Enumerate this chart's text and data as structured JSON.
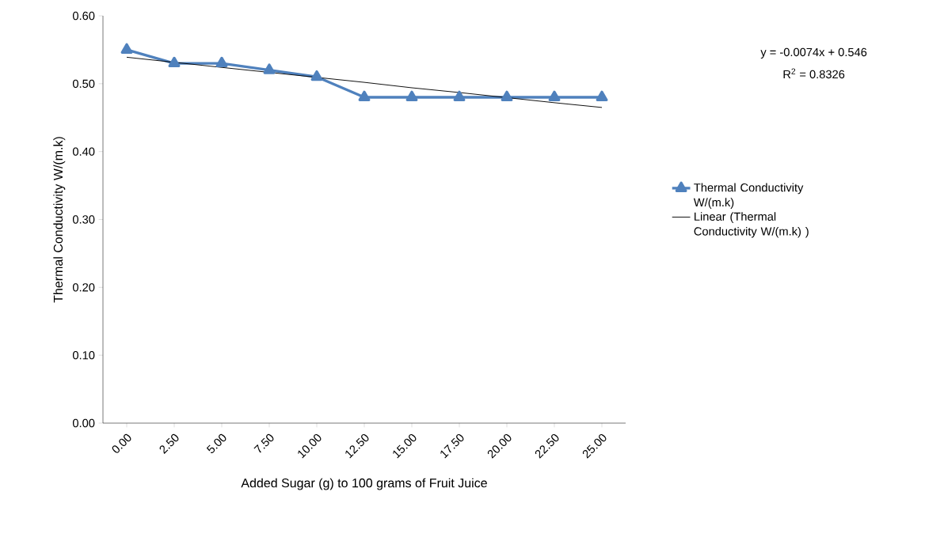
{
  "chart_data": {
    "type": "line",
    "xlabel": "Added Sugar (g) to 100 grams of Fruit Juice",
    "ylabel": "Thermal Conductivity W/(m.k)",
    "categories": [
      "0.00",
      "2.50",
      "5.00",
      "7.50",
      "10.00",
      "12.50",
      "15.00",
      "17.50",
      "20.00",
      "22.50",
      "25.00"
    ],
    "series": [
      {
        "name": "Thermal Conductivity W/(m.k)",
        "color": "#4f81bd",
        "marker": "triangle",
        "values": [
          0.55,
          0.53,
          0.53,
          0.52,
          0.51,
          0.48,
          0.48,
          0.48,
          0.48,
          0.48,
          0.48
        ]
      },
      {
        "name": "Linear (Thermal Conductivity W/(m.k) )",
        "color": "#000000",
        "marker": "none",
        "values": [
          0.539,
          null,
          0.524,
          null,
          null,
          0.502,
          0.494,
          0.487,
          null,
          0.472,
          0.465
        ]
      }
    ],
    "ylim": [
      0,
      0.6
    ],
    "yticks": [
      {
        "value": 0,
        "label": "0.00"
      },
      {
        "value": 0.1,
        "label": "0.10"
      },
      {
        "value": 0.2,
        "label": "0.20"
      },
      {
        "value": 0.3,
        "label": "0.30"
      },
      {
        "value": 0.4,
        "label": "0.40"
      },
      {
        "value": 0.5,
        "label": "0.50"
      },
      {
        "value": 0.6,
        "label": "0.60"
      }
    ],
    "annotations": [
      "y = -0.0074x + 0.546",
      "R$^{2}$ = 0.8326"
    ],
    "legend": "right",
    "grid": false
  }
}
